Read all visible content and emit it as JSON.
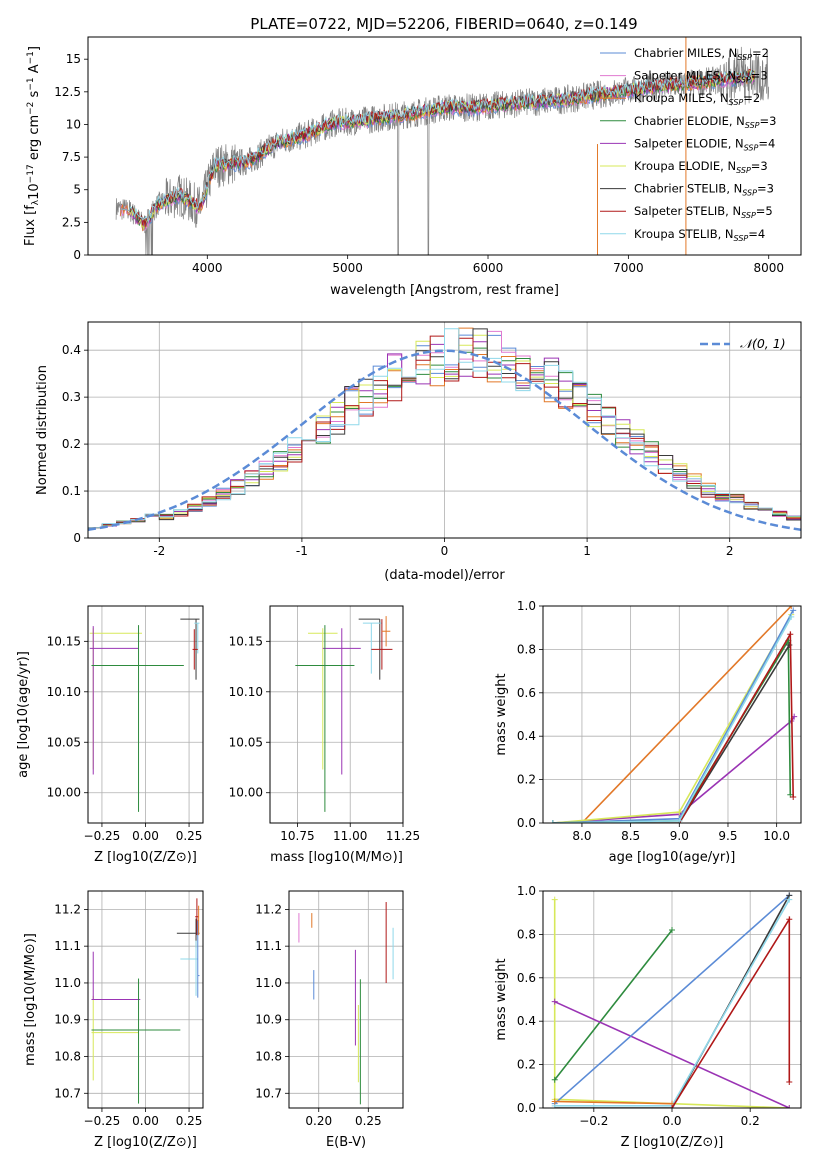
{
  "figure": {
    "title": "PLATE=0722, MJD=52206, FIBERID=0640, z=0.149"
  },
  "chart_data": [
    {
      "id": "spectrum",
      "type": "line",
      "xlabel": "wavelength [Angstrom, rest frame]",
      "ylabel": "Flux [f_λ 10^-17 erg cm^-2 s^-1 A^-1]",
      "xlim": [
        3150,
        8230
      ],
      "ylim": [
        0,
        16.7
      ],
      "xticks": [
        4000,
        5000,
        6000,
        7000,
        8000
      ],
      "yticks": [
        0.0,
        2.5,
        5.0,
        7.5,
        10.0,
        12.5,
        15.0
      ],
      "legend_position": "upper-right",
      "observed_color": "#808080",
      "series": [
        {
          "name": "Chabrier MILES, N_SSP=2",
          "color": "#5b8bd6"
        },
        {
          "name": "Salpeter MILES, N_SSP=3",
          "color": "#e07ad0"
        },
        {
          "name": "Kroupa MILES, N_SSP=2",
          "color": "#e27828"
        },
        {
          "name": "Chabrier ELODIE, N_SSP=3",
          "color": "#2e8b3e"
        },
        {
          "name": "Salpeter ELODIE, N_SSP=4",
          "color": "#9a34b4"
        },
        {
          "name": "Kroupa ELODIE, N_SSP=3",
          "color": "#d7e85a"
        },
        {
          "name": "Chabrier STELIB, N_SSP=3",
          "color": "#3a3a3a"
        },
        {
          "name": "Salpeter STELIB, N_SSP=5",
          "color": "#b01818"
        },
        {
          "name": "Kroupa STELIB, N_SSP=4",
          "color": "#8fd8ea"
        }
      ],
      "continuum": [
        {
          "x": 3350,
          "y": 3.6
        },
        {
          "x": 3450,
          "y": 3.4
        },
        {
          "x": 3550,
          "y": 2.3
        },
        {
          "x": 3650,
          "y": 3.9
        },
        {
          "x": 3800,
          "y": 4.6
        },
        {
          "x": 3950,
          "y": 3.6
        },
        {
          "x": 4050,
          "y": 6.8
        },
        {
          "x": 4300,
          "y": 7.2
        },
        {
          "x": 4500,
          "y": 8.6
        },
        {
          "x": 4700,
          "y": 9.2
        },
        {
          "x": 4900,
          "y": 10.1
        },
        {
          "x": 5100,
          "y": 10.3
        },
        {
          "x": 5300,
          "y": 10.6
        },
        {
          "x": 5500,
          "y": 10.9
        },
        {
          "x": 5700,
          "y": 11.3
        },
        {
          "x": 5900,
          "y": 11.3
        },
        {
          "x": 6100,
          "y": 11.5
        },
        {
          "x": 6300,
          "y": 11.7
        },
        {
          "x": 6550,
          "y": 11.9
        },
        {
          "x": 6800,
          "y": 12.3
        },
        {
          "x": 7000,
          "y": 12.6
        },
        {
          "x": 7200,
          "y": 12.9
        },
        {
          "x": 7500,
          "y": 13.2
        },
        {
          "x": 7800,
          "y": 13.6
        },
        {
          "x": 8000,
          "y": 13.8
        }
      ]
    },
    {
      "id": "residuals",
      "type": "histogram",
      "xlabel": "(data-model)/error",
      "ylabel": "Normed distribution",
      "xlim": [
        -2.5,
        2.5
      ],
      "ylim": [
        0,
        0.46
      ],
      "xticks": [
        -2,
        -1,
        0,
        1,
        2
      ],
      "yticks": [
        0.0,
        0.1,
        0.2,
        0.3,
        0.4
      ],
      "grid": true,
      "legend_position": "upper-right",
      "reference_curve": {
        "name": "𝒩(0, 1)",
        "mean": 0,
        "sigma": 1,
        "color": "#5b8bd6"
      },
      "bin_width": 0.1,
      "shifted_normal": {
        "mean": 0.18,
        "sigma": 1.02
      },
      "series_colors": [
        "#5b8bd6",
        "#e07ad0",
        "#e27828",
        "#2e8b3e",
        "#9a34b4",
        "#d7e85a",
        "#3a3a3a",
        "#b01818",
        "#8fd8ea"
      ]
    },
    {
      "id": "age-vs-Z",
      "type": "errorbar",
      "xlabel": "Z [log10(Z/Z⊙)]",
      "ylabel": "age [log10(age/yr)]",
      "xlim": [
        -0.33,
        0.33
      ],
      "ylim": [
        9.97,
        10.185
      ],
      "xticks": [
        -0.25,
        0.0,
        0.25
      ],
      "xticklabels": [
        "−0.25",
        "0.00",
        "0.25"
      ],
      "yticks": [
        10.0,
        10.05,
        10.1,
        10.15
      ],
      "yticklabels": [
        "10.00",
        "10.05",
        "10.10",
        "10.15"
      ],
      "grid": true,
      "points": [
        {
          "x": -0.3,
          "xerr": [
            0.02,
            0.28
          ],
          "y": 10.158,
          "yerr": [
            0.135,
            0.005
          ],
          "color": "#d7e85a"
        },
        {
          "x": -0.3,
          "xerr": [
            0.02,
            0.26
          ],
          "y": 10.143,
          "yerr": [
            0.125,
            0.022
          ],
          "color": "#9a34b4"
        },
        {
          "x": -0.04,
          "xerr": [
            0.27,
            0.26
          ],
          "y": 10.126,
          "yerr": [
            0.145,
            0.04
          ],
          "color": "#2e8b3e"
        },
        {
          "x": 0.29,
          "xerr": [
            0.09,
            0.02
          ],
          "y": 10.172,
          "yerr": [
            0.06,
            0.0
          ],
          "color": "#3a3a3a"
        },
        {
          "x": 0.3,
          "xerr": [
            0.02,
            0.01
          ],
          "y": 10.168,
          "yerr": [
            0.03,
            0.0
          ],
          "color": "#8fd8ea"
        },
        {
          "x": 0.28,
          "xerr": [
            0.01,
            0.02
          ],
          "y": 10.142,
          "yerr": [
            0.02,
            0.02
          ],
          "color": "#b01818"
        }
      ]
    },
    {
      "id": "age-vs-mass",
      "type": "errorbar",
      "xlabel": "mass [log10(M/M⊙)]",
      "xlim": [
        10.62,
        11.25
      ],
      "ylim": [
        9.97,
        10.185
      ],
      "xticks": [
        10.75,
        11.0,
        11.25
      ],
      "xticklabels": [
        "10.75",
        "11.00",
        "11.25"
      ],
      "yticks": [
        10.0,
        10.05,
        10.1,
        10.15
      ],
      "yticklabels": [
        "10.00",
        "10.05",
        "10.10",
        "10.15"
      ],
      "grid": true,
      "points": [
        {
          "x": 10.87,
          "xerr": [
            0.07,
            0.07
          ],
          "y": 10.158,
          "yerr": [
            0.135,
            0.005
          ],
          "color": "#d7e85a"
        },
        {
          "x": 10.96,
          "xerr": [
            0.09,
            0.09
          ],
          "y": 10.143,
          "yerr": [
            0.125,
            0.02
          ],
          "color": "#9a34b4"
        },
        {
          "x": 10.88,
          "xerr": [
            0.14,
            0.14
          ],
          "y": 10.126,
          "yerr": [
            0.145,
            0.04
          ],
          "color": "#2e8b3e"
        },
        {
          "x": 11.14,
          "xerr": [
            0.1,
            0.0
          ],
          "y": 10.172,
          "yerr": [
            0.06,
            0.0
          ],
          "color": "#3a3a3a"
        },
        {
          "x": 11.1,
          "xerr": [
            0.04,
            0.05
          ],
          "y": 10.168,
          "yerr": [
            0.05,
            0.0
          ],
          "color": "#8fd8ea"
        },
        {
          "x": 11.15,
          "xerr": [
            0.05,
            0.05
          ],
          "y": 10.142,
          "yerr": [
            0.02,
            0.03
          ],
          "color": "#b01818"
        },
        {
          "x": 11.17,
          "xerr": [
            0.02,
            0.02
          ],
          "y": 10.16,
          "yerr": [
            0.015,
            0.015
          ],
          "color": "#e27828"
        }
      ]
    },
    {
      "id": "weight-vs-age",
      "type": "line",
      "xlabel": "age  [log10(age/yr)]",
      "ylabel": "mass weight",
      "xlim": [
        7.6,
        10.25
      ],
      "ylim": [
        0,
        1.0
      ],
      "xticks": [
        8.0,
        8.5,
        9.0,
        9.5,
        10.0
      ],
      "xticklabels": [
        "8.0",
        "8.5",
        "9.0",
        "9.5",
        "10.0"
      ],
      "yticks": [
        0,
        0.2,
        0.4,
        0.6,
        0.8,
        1.0
      ],
      "yticklabels": [
        "0.0",
        "0.2",
        "0.4",
        "0.6",
        "0.8",
        "1.0"
      ],
      "grid": true,
      "lines": [
        {
          "color": "#e27828",
          "points": [
            {
              "x": 8.0,
              "y": 0.0
            },
            {
              "x": 10.15,
              "y": 1.0
            }
          ]
        },
        {
          "color": "#9a34b4",
          "points": [
            {
              "x": 7.7,
              "y": 0.0
            },
            {
              "x": 9.0,
              "y": 0.04
            },
            {
              "x": 10.15,
              "y": 0.47
            },
            {
              "x": 10.18,
              "y": 0.49
            }
          ]
        },
        {
          "color": "#d7e85a",
          "points": [
            {
              "x": 7.7,
              "y": 0.0
            },
            {
              "x": 9.0,
              "y": 0.05
            },
            {
              "x": 10.15,
              "y": 0.96
            }
          ]
        },
        {
          "color": "#5b8bd6",
          "points": [
            {
              "x": 7.7,
              "y": 0.0
            },
            {
              "x": 9.0,
              "y": 0.02
            },
            {
              "x": 10.17,
              "y": 0.98
            }
          ]
        },
        {
          "color": "#2e8b3e",
          "points": [
            {
              "x": 7.7,
              "y": 0.0
            },
            {
              "x": 9.0,
              "y": 0.01
            },
            {
              "x": 10.12,
              "y": 0.84
            },
            {
              "x": 10.14,
              "y": 0.13
            }
          ]
        },
        {
          "color": "#3a3a3a",
          "points": [
            {
              "x": 7.7,
              "y": 0.0
            },
            {
              "x": 9.0,
              "y": 0.0
            },
            {
              "x": 10.13,
              "y": 0.82
            }
          ]
        },
        {
          "color": "#b01818",
          "points": [
            {
              "x": 9.0,
              "y": 0.0
            },
            {
              "x": 10.14,
              "y": 0.87
            },
            {
              "x": 10.17,
              "y": 0.12
            }
          ]
        },
        {
          "color": "#8fd8ea",
          "points": [
            {
              "x": 7.7,
              "y": 0.0
            },
            {
              "x": 9.0,
              "y": 0.01
            },
            {
              "x": 10.15,
              "y": 0.95
            }
          ]
        }
      ]
    },
    {
      "id": "mass-vs-Z",
      "type": "errorbar",
      "xlabel": "Z [log10(Z/Z⊙)]",
      "ylabel": "mass [log10(M/M⊙)]",
      "xlim": [
        -0.33,
        0.33
      ],
      "ylim": [
        10.66,
        11.25
      ],
      "xticks": [
        -0.25,
        0.0,
        0.25
      ],
      "xticklabels": [
        "−0.25",
        "0.00",
        "0.25"
      ],
      "yticks": [
        10.7,
        10.8,
        10.9,
        11.0,
        11.1,
        11.2
      ],
      "yticklabels": [
        "10.7",
        "10.8",
        "10.9",
        "11.0",
        "11.1",
        "11.2"
      ],
      "grid": true,
      "points": [
        {
          "x": -0.3,
          "xerr": [
            0.01,
            0.26
          ],
          "y": 10.865,
          "yerr": [
            0.13,
            0.1
          ],
          "color": "#d7e85a"
        },
        {
          "x": -0.3,
          "xerr": [
            0.01,
            0.27
          ],
          "y": 10.955,
          "yerr": [
            0.0,
            0.13
          ],
          "color": "#9a34b4"
        },
        {
          "x": -0.04,
          "xerr": [
            0.27,
            0.24
          ],
          "y": 10.872,
          "yerr": [
            0.2,
            0.14
          ],
          "color": "#2e8b3e"
        },
        {
          "x": 0.29,
          "xerr": [
            0.11,
            0.02
          ],
          "y": 11.135,
          "yerr": [
            0.04,
            0.04
          ],
          "color": "#3a3a3a"
        },
        {
          "x": 0.29,
          "xerr": [
            0.09,
            0.01
          ],
          "y": 11.065,
          "yerr": [
            0.1,
            0.05
          ],
          "color": "#8fd8ea"
        },
        {
          "x": 0.295,
          "xerr": [
            0.01,
            0.01
          ],
          "y": 11.18,
          "yerr": [
            0.05,
            0.05
          ],
          "color": "#b01818"
        },
        {
          "x": 0.3,
          "xerr": [
            0.0,
            0.01
          ],
          "y": 11.02,
          "yerr": [
            0.06,
            0.15
          ],
          "color": "#5b8bd6"
        },
        {
          "x": 0.305,
          "xerr": [
            0.005,
            0.0
          ],
          "y": 11.17,
          "yerr": [
            0.04,
            0.04
          ],
          "color": "#e27828"
        }
      ]
    },
    {
      "id": "mass-vs-EBV",
      "type": "errorbar",
      "xlabel": "E(B-V)",
      "xlim": [
        0.17,
        0.285
      ],
      "ylim": [
        10.66,
        11.25
      ],
      "xticks": [
        0.2,
        0.25
      ],
      "xticklabels": [
        "0.20",
        "0.25"
      ],
      "yticks": [
        10.7,
        10.8,
        10.9,
        11.0,
        11.1,
        11.2
      ],
      "yticklabels": [
        "10.7",
        "10.8",
        "10.9",
        "11.0",
        "11.1",
        "11.2"
      ],
      "grid": true,
      "points": [
        {
          "x": 0.18,
          "y": 11.15,
          "yerr": [
            0.04,
            0.04
          ],
          "color": "#e07ad0"
        },
        {
          "x": 0.193,
          "y": 11.17,
          "yerr": [
            0.02,
            0.02
          ],
          "color": "#e27828"
        },
        {
          "x": 0.195,
          "y": 10.995,
          "yerr": [
            0.04,
            0.04
          ],
          "color": "#5b8bd6"
        },
        {
          "x": 0.237,
          "y": 10.96,
          "yerr": [
            0.13,
            0.13
          ],
          "color": "#9a34b4"
        },
        {
          "x": 0.24,
          "y": 10.83,
          "yerr": [
            0.1,
            0.11
          ],
          "color": "#d7e85a"
        },
        {
          "x": 0.242,
          "y": 10.87,
          "yerr": [
            0.2,
            0.14
          ],
          "color": "#2e8b3e"
        },
        {
          "x": 0.268,
          "y": 11.11,
          "yerr": [
            0.11,
            0.11
          ],
          "color": "#b01818"
        },
        {
          "x": 0.275,
          "y": 11.08,
          "yerr": [
            0.07,
            0.07
          ],
          "color": "#8fd8ea"
        }
      ]
    },
    {
      "id": "weight-vs-Z",
      "type": "line",
      "xlabel": "Z [log10(Z/Z⊙)]",
      "ylabel": "mass weight",
      "xlim": [
        -0.33,
        0.33
      ],
      "ylim": [
        0,
        1.0
      ],
      "xticks": [
        -0.2,
        0.0,
        0.2
      ],
      "xticklabels": [
        "−0.2",
        "0.0",
        "0.2"
      ],
      "yticks": [
        0,
        0.2,
        0.4,
        0.6,
        0.8,
        1.0
      ],
      "yticklabels": [
        "0.0",
        "0.2",
        "0.4",
        "0.6",
        "0.8",
        "1.0"
      ],
      "grid": true,
      "lines": [
        {
          "color": "#d7e85a",
          "points": [
            {
              "x": -0.3,
              "y": 0.96
            },
            {
              "x": -0.3,
              "y": 0.04
            },
            {
              "x": 0.3,
              "y": 0.0
            }
          ]
        },
        {
          "color": "#2e8b3e",
          "points": [
            {
              "x": -0.3,
              "y": 0.13
            },
            {
              "x": 0.0,
              "y": 0.82
            }
          ]
        },
        {
          "color": "#9a34b4",
          "points": [
            {
              "x": -0.3,
              "y": 0.49
            },
            {
              "x": 0.3,
              "y": 0.0
            }
          ]
        },
        {
          "color": "#5b8bd6",
          "points": [
            {
              "x": -0.3,
              "y": 0.02
            },
            {
              "x": 0.3,
              "y": 0.98
            }
          ]
        },
        {
          "color": "#3a3a3a",
          "points": [
            {
              "x": -0.3,
              "y": 0.0
            },
            {
              "x": 0.0,
              "y": 0.0
            },
            {
              "x": 0.3,
              "y": 0.98
            }
          ]
        },
        {
          "color": "#8fd8ea",
          "points": [
            {
              "x": -0.3,
              "y": 0.01
            },
            {
              "x": 0.0,
              "y": 0.01
            },
            {
              "x": 0.3,
              "y": 0.96
            }
          ]
        },
        {
          "color": "#e27828",
          "points": [
            {
              "x": -0.3,
              "y": 0.03
            },
            {
              "x": 0.0,
              "y": 0.02
            }
          ]
        },
        {
          "color": "#b01818",
          "points": [
            {
              "x": 0.0,
              "y": 0.0
            },
            {
              "x": 0.3,
              "y": 0.87
            },
            {
              "x": 0.3,
              "y": 0.12
            }
          ]
        }
      ]
    }
  ]
}
